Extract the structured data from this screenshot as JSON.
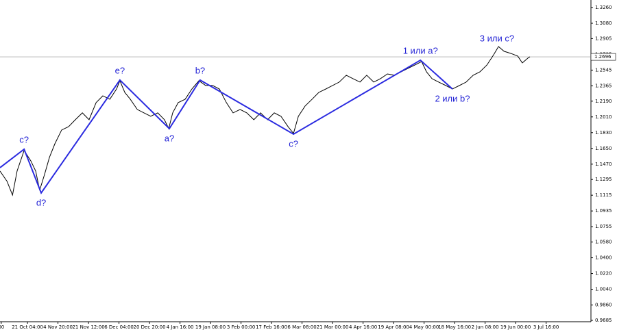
{
  "chart_data": {
    "type": "line",
    "xlim": [
      -0.9,
      18.47
    ],
    "ylim": [
      0.9669,
      1.3346
    ],
    "xticks": [
      {
        "value": -0.86,
        "label": "00"
      },
      {
        "value": 0,
        "label": "21 Oct 04:00"
      },
      {
        "value": 1,
        "label": "4 Nov 20:00"
      },
      {
        "value": 2,
        "label": "21 Nov 12:00"
      },
      {
        "value": 3,
        "label": "6 Dec 04:00"
      },
      {
        "value": 4,
        "label": "20 Dec 20:00"
      },
      {
        "value": 5,
        "label": "4 Jan 16:00"
      },
      {
        "value": 6,
        "label": "19 Jan 08:00"
      },
      {
        "value": 7,
        "label": "3 Feb 00:00"
      },
      {
        "value": 8,
        "label": "17 Feb 16:00"
      },
      {
        "value": 9,
        "label": "6 Mar 08:00"
      },
      {
        "value": 10,
        "label": "21 Mar 00:00"
      },
      {
        "value": 11,
        "label": "4 Apr 16:00"
      },
      {
        "value": 12,
        "label": "19 Apr 08:00"
      },
      {
        "value": 13,
        "label": "4 May 00:00"
      },
      {
        "value": 14,
        "label": "18 May 16:00"
      },
      {
        "value": 15,
        "label": "2 Jun 08:00"
      },
      {
        "value": 16,
        "label": "19 Jun 00:00"
      },
      {
        "value": 17,
        "label": "3 Jul 16:00"
      }
    ],
    "yticks": [
      {
        "value": 1.326,
        "label": "1.3260"
      },
      {
        "value": 1.308,
        "label": "1.3080"
      },
      {
        "value": 1.2905,
        "label": "1.2905"
      },
      {
        "value": 1.2725,
        "label": "1.2725"
      },
      {
        "value": 1.2545,
        "label": "1.2545"
      },
      {
        "value": 1.2365,
        "label": "1.2365"
      },
      {
        "value": 1.219,
        "label": "1.2190"
      },
      {
        "value": 1.201,
        "label": "1.2010"
      },
      {
        "value": 1.183,
        "label": "1.1830"
      },
      {
        "value": 1.165,
        "label": "1.1650"
      },
      {
        "value": 1.147,
        "label": "1.1470"
      },
      {
        "value": 1.1295,
        "label": "1.1295"
      },
      {
        "value": 1.1115,
        "label": "1.1115"
      },
      {
        "value": 1.0935,
        "label": "1.0935"
      },
      {
        "value": 1.0755,
        "label": "1.0755"
      },
      {
        "value": 1.058,
        "label": "1.0580"
      },
      {
        "value": 1.04,
        "label": "1.0400"
      },
      {
        "value": 1.022,
        "label": "1.0220"
      },
      {
        "value": 1.004,
        "label": "1.0040"
      },
      {
        "value": 0.986,
        "label": "0.9860"
      },
      {
        "value": 0.9685,
        "label": "0.9685"
      }
    ],
    "last_price": {
      "value": 1.2696,
      "label": "1.2696"
    },
    "series": [
      {
        "color": "#000000",
        "x": [
          -0.9,
          -0.67,
          -0.49,
          -0.34,
          -0.11,
          0.11,
          0.27,
          0.4,
          0.56,
          0.72,
          0.9,
          1.12,
          1.35,
          1.57,
          1.8,
          2.02,
          2.25,
          2.47,
          2.7,
          2.92,
          3.03,
          3.19,
          3.37,
          3.6,
          3.82,
          4.04,
          4.27,
          4.49,
          4.63,
          4.76,
          4.94,
          5.17,
          5.39,
          5.62,
          5.84,
          6.07,
          6.29,
          6.52,
          6.74,
          6.97,
          7.19,
          7.42,
          7.64,
          7.87,
          8.09,
          8.31,
          8.54,
          8.72,
          8.88,
          9.1,
          9.33,
          9.55,
          9.78,
          10,
          10.22,
          10.45,
          10.67,
          10.9,
          11.12,
          11.35,
          11.57,
          11.8,
          12.02,
          12.25,
          12.47,
          12.7,
          12.92,
          13.08,
          13.26,
          13.48,
          13.71,
          13.93,
          14.16,
          14.38,
          14.61,
          14.83,
          15.06,
          15.28,
          15.44,
          15.62,
          15.84,
          16.07,
          16.22,
          16.4,
          16.47
        ],
        "values": [
          1.1391,
          1.1274,
          1.1117,
          1.1391,
          1.1626,
          1.1508,
          1.1391,
          1.1172,
          1.1352,
          1.1547,
          1.1704,
          1.186,
          1.1899,
          1.1978,
          1.2056,
          1.1978,
          1.2173,
          1.2251,
          1.2212,
          1.2329,
          1.2423,
          1.229,
          1.2212,
          1.2095,
          1.2056,
          1.2017,
          1.2056,
          1.1978,
          1.1876,
          1.2056,
          1.2173,
          1.2212,
          1.2329,
          1.2423,
          1.2369,
          1.2369,
          1.2329,
          1.2173,
          1.2056,
          1.2095,
          1.2056,
          1.1978,
          1.2056,
          1.1978,
          1.2056,
          1.2017,
          1.1899,
          1.1821,
          1.2017,
          1.2134,
          1.2212,
          1.229,
          1.2329,
          1.2369,
          1.2408,
          1.2486,
          1.2447,
          1.2408,
          1.2486,
          1.2408,
          1.2447,
          1.2501,
          1.2486,
          1.2525,
          1.2564,
          1.2603,
          1.2642,
          1.2525,
          1.2447,
          1.2408,
          1.2369,
          1.2329,
          1.2369,
          1.2408,
          1.2486,
          1.2525,
          1.2603,
          1.272,
          1.2814,
          1.276,
          1.2736,
          1.2705,
          1.2627,
          1.2681,
          1.2697
        ]
      },
      {
        "color": "#2b2be0",
        "x": [
          -0.9,
          -0.11,
          0.45,
          3.03,
          4.65,
          5.66,
          8.72,
          12.88,
          13.93
        ],
        "values": [
          1.143,
          1.1641,
          1.1141,
          1.2431,
          1.1876,
          1.2431,
          1.1813,
          1.2658,
          1.2329
        ],
        "point_labels": [
          null,
          "c?",
          "d?",
          "e?",
          "a?",
          "b?",
          "c?",
          "1 или a?",
          "2 или b?"
        ]
      }
    ],
    "annotations": [
      {
        "text": "3 или c?",
        "x": 15.39,
        "y": 1.29
      }
    ]
  }
}
